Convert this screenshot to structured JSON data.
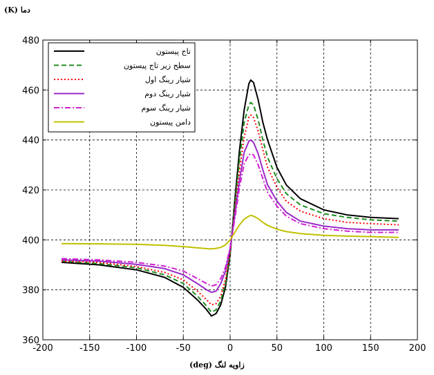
{
  "chart_data": {
    "type": "line",
    "ylabel": "دما (K)",
    "xlabel": "زاویه لنگ (deg)",
    "xlim": [
      -200,
      200
    ],
    "ylim": [
      360,
      480
    ],
    "xticks": [
      -200,
      -150,
      -100,
      -50,
      0,
      50,
      100,
      150,
      200
    ],
    "yticks": [
      360,
      380,
      400,
      420,
      440,
      460,
      480
    ],
    "grid": true,
    "legend_position": "top-left",
    "x": [
      -180,
      -140,
      -100,
      -70,
      -50,
      -35,
      -25,
      -20,
      -15,
      -10,
      -5,
      0,
      5,
      10,
      15,
      20,
      22,
      25,
      30,
      35,
      40,
      50,
      60,
      75,
      100,
      125,
      150,
      180
    ],
    "series": [
      {
        "name": "تاج پیستون",
        "color": "#000000",
        "dash": "",
        "values": [
          391.0,
          390.0,
          388.0,
          385.0,
          381.0,
          376.0,
          372.0,
          369.5,
          370.5,
          374.0,
          381.0,
          394.0,
          416.0,
          436.0,
          452.0,
          462.5,
          464.0,
          463.0,
          456.0,
          447.0,
          440.0,
          429.0,
          422.0,
          416.5,
          412.0,
          410.0,
          409.0,
          408.5
        ]
      },
      {
        "name": "سطح زیر تاج پیستون",
        "color": "#1e8c1e",
        "dash": "7,4",
        "values": [
          391.5,
          390.5,
          388.8,
          386.0,
          382.5,
          377.5,
          373.5,
          371.0,
          372.0,
          375.5,
          382.5,
          395.0,
          414.0,
          432.0,
          447.0,
          454.0,
          455.0,
          454.0,
          448.0,
          440.0,
          433.0,
          424.5,
          418.5,
          414.0,
          410.5,
          409.0,
          408.0,
          407.5
        ]
      },
      {
        "name": "شیار رینگ اول",
        "color": "#ff0000",
        "dash": "2,3",
        "values": [
          391.5,
          391.0,
          389.3,
          387.0,
          384.0,
          379.5,
          376.0,
          374.0,
          374.5,
          377.5,
          384.0,
          395.5,
          412.0,
          428.0,
          441.0,
          449.0,
          450.0,
          449.0,
          443.5,
          436.0,
          429.0,
          421.0,
          415.5,
          411.5,
          408.5,
          407.0,
          406.5,
          406.0
        ]
      },
      {
        "name": "شیار رینگ دوم",
        "color": "#9a28c8",
        "dash": "",
        "values": [
          392.0,
          391.5,
          390.2,
          388.5,
          386.0,
          382.5,
          380.0,
          379.0,
          379.5,
          382.5,
          387.5,
          396.5,
          410.0,
          424.0,
          435.0,
          439.5,
          440.0,
          439.0,
          434.5,
          428.0,
          422.0,
          415.5,
          411.0,
          407.5,
          405.5,
          404.5,
          404.0,
          404.0
        ]
      },
      {
        "name": "شیار رینگ سوم",
        "color": "#d020d0",
        "dash": "8,3,2,3",
        "values": [
          392.5,
          392.0,
          391.0,
          389.5,
          387.5,
          384.5,
          382.5,
          381.5,
          382.0,
          384.5,
          389.0,
          397.0,
          408.5,
          421.0,
          430.5,
          434.0,
          434.5,
          434.0,
          430.0,
          424.5,
          419.0,
          413.5,
          409.5,
          406.5,
          404.5,
          403.5,
          403.0,
          403.0
        ]
      },
      {
        "name": "دامن پیستون",
        "color": "#c0c000",
        "dash": "",
        "values": [
          398.5,
          398.4,
          398.2,
          397.8,
          397.3,
          396.8,
          396.5,
          396.4,
          396.6,
          397.0,
          398.0,
          400.0,
          403.0,
          406.0,
          408.3,
          409.5,
          409.8,
          409.5,
          408.5,
          407.0,
          405.8,
          404.3,
          403.3,
          402.5,
          401.8,
          401.5,
          401.3,
          401.0
        ]
      }
    ]
  }
}
